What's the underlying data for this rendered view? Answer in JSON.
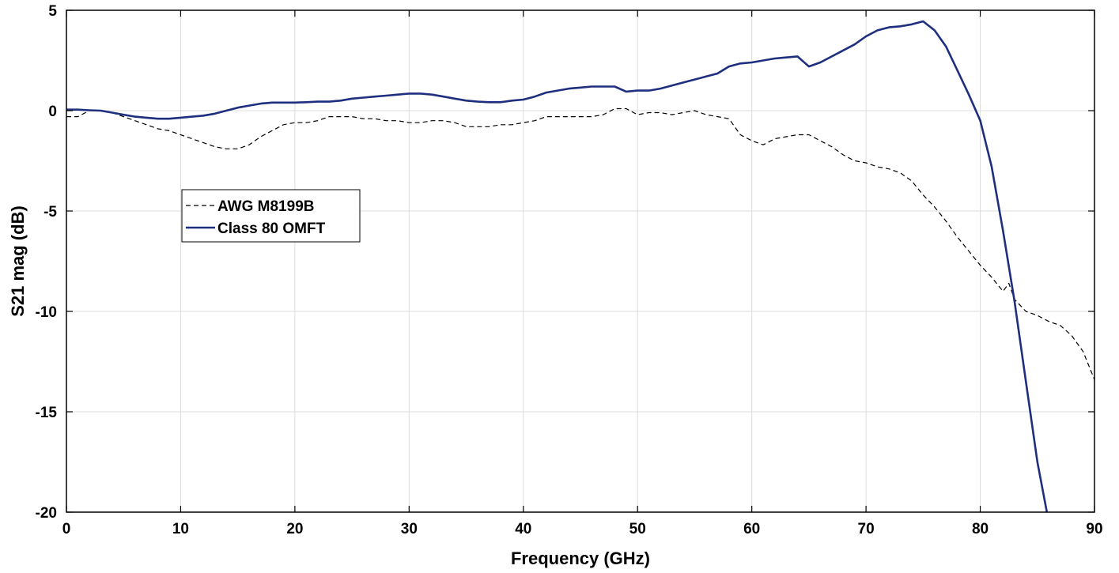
{
  "chart_data": {
    "type": "line",
    "title": "",
    "xlabel": "Frequency (GHz)",
    "ylabel": "S21 mag (dB)",
    "xlim": [
      0,
      90
    ],
    "ylim": [
      -20,
      5
    ],
    "xticks": [
      0,
      10,
      20,
      30,
      40,
      50,
      60,
      70,
      80,
      90
    ],
    "yticks": [
      5,
      0,
      -5,
      -10,
      -15,
      -20
    ],
    "grid": true,
    "legend_position": "left",
    "series": [
      {
        "name": "AWG M8199B",
        "color": "#000000",
        "style": "dashed",
        "x": [
          0,
          1,
          2,
          3,
          4,
          5,
          6,
          7,
          8,
          9,
          10,
          11,
          12,
          13,
          14,
          15,
          16,
          17,
          18,
          19,
          20,
          21,
          22,
          23,
          24,
          25,
          26,
          27,
          28,
          29,
          30,
          31,
          32,
          33,
          34,
          35,
          36,
          37,
          38,
          39,
          40,
          41,
          42,
          43,
          44,
          45,
          46,
          47,
          48,
          49,
          50,
          51,
          52,
          53,
          54,
          55,
          56,
          57,
          58,
          59,
          60,
          61,
          62,
          63,
          64,
          65,
          66,
          67,
          68,
          69,
          70,
          71,
          72,
          73,
          74,
          75,
          76,
          77,
          78,
          79,
          80,
          81,
          82,
          82.5,
          83,
          84,
          85,
          86,
          87,
          88,
          89,
          90
        ],
        "y": [
          -0.3,
          -0.3,
          0,
          0,
          -0.1,
          -0.3,
          -0.5,
          -0.7,
          -0.9,
          -1.0,
          -1.2,
          -1.4,
          -1.6,
          -1.8,
          -1.9,
          -1.9,
          -1.7,
          -1.3,
          -1.0,
          -0.7,
          -0.6,
          -0.6,
          -0.5,
          -0.3,
          -0.3,
          -0.3,
          -0.4,
          -0.4,
          -0.5,
          -0.5,
          -0.6,
          -0.6,
          -0.5,
          -0.5,
          -0.6,
          -0.8,
          -0.8,
          -0.8,
          -0.7,
          -0.7,
          -0.6,
          -0.5,
          -0.3,
          -0.3,
          -0.3,
          -0.3,
          -0.3,
          -0.2,
          0.1,
          0.1,
          -0.2,
          -0.1,
          -0.1,
          -0.2,
          -0.1,
          0,
          -0.2,
          -0.3,
          -0.4,
          -1.2,
          -1.5,
          -1.7,
          -1.4,
          -1.3,
          -1.2,
          -1.2,
          -1.5,
          -1.8,
          -2.2,
          -2.5,
          -2.6,
          -2.8,
          -2.9,
          -3.1,
          -3.5,
          -4.2,
          -4.8,
          -5.5,
          -6.3,
          -7.0,
          -7.7,
          -8.3,
          -9.0,
          -8.6,
          -9.4,
          -10.0,
          -10.2,
          -10.5,
          -10.7,
          -11.2,
          -12.0,
          -13.4
        ]
      },
      {
        "name": "Class 80 OMFT",
        "color": "#1f2f7f",
        "style": "solid",
        "x": [
          0,
          1,
          2,
          3,
          4,
          5,
          6,
          7,
          8,
          9,
          10,
          11,
          12,
          13,
          14,
          15,
          16,
          17,
          18,
          19,
          20,
          21,
          22,
          23,
          24,
          25,
          26,
          27,
          28,
          29,
          30,
          31,
          32,
          33,
          34,
          35,
          36,
          37,
          38,
          39,
          40,
          41,
          42,
          43,
          44,
          45,
          46,
          47,
          48,
          49,
          50,
          51,
          52,
          53,
          54,
          55,
          56,
          57,
          58,
          59,
          60,
          61,
          62,
          63,
          64,
          65,
          66,
          67,
          68,
          69,
          70,
          71,
          72,
          73,
          74,
          75,
          76,
          77,
          78,
          79,
          80,
          81,
          82,
          83,
          84,
          85,
          86
        ],
        "y": [
          0.05,
          0.05,
          0.02,
          0,
          -0.1,
          -0.2,
          -0.3,
          -0.35,
          -0.4,
          -0.4,
          -0.35,
          -0.3,
          -0.25,
          -0.15,
          0,
          0.15,
          0.25,
          0.35,
          0.4,
          0.4,
          0.4,
          0.42,
          0.45,
          0.45,
          0.5,
          0.6,
          0.65,
          0.7,
          0.75,
          0.8,
          0.85,
          0.85,
          0.8,
          0.7,
          0.6,
          0.5,
          0.45,
          0.42,
          0.42,
          0.5,
          0.55,
          0.7,
          0.9,
          1.0,
          1.1,
          1.15,
          1.2,
          1.2,
          1.2,
          0.95,
          1.0,
          1.0,
          1.1,
          1.25,
          1.4,
          1.55,
          1.7,
          1.85,
          2.2,
          2.35,
          2.4,
          2.5,
          2.6,
          2.65,
          2.7,
          2.2,
          2.4,
          2.7,
          3.0,
          3.3,
          3.7,
          4.0,
          4.15,
          4.2,
          4.3,
          4.45,
          4.0,
          3.2,
          2.0,
          0.8,
          -0.5,
          -2.8,
          -6.0,
          -9.5,
          -13.5,
          -17.5,
          -20.5
        ]
      }
    ]
  }
}
